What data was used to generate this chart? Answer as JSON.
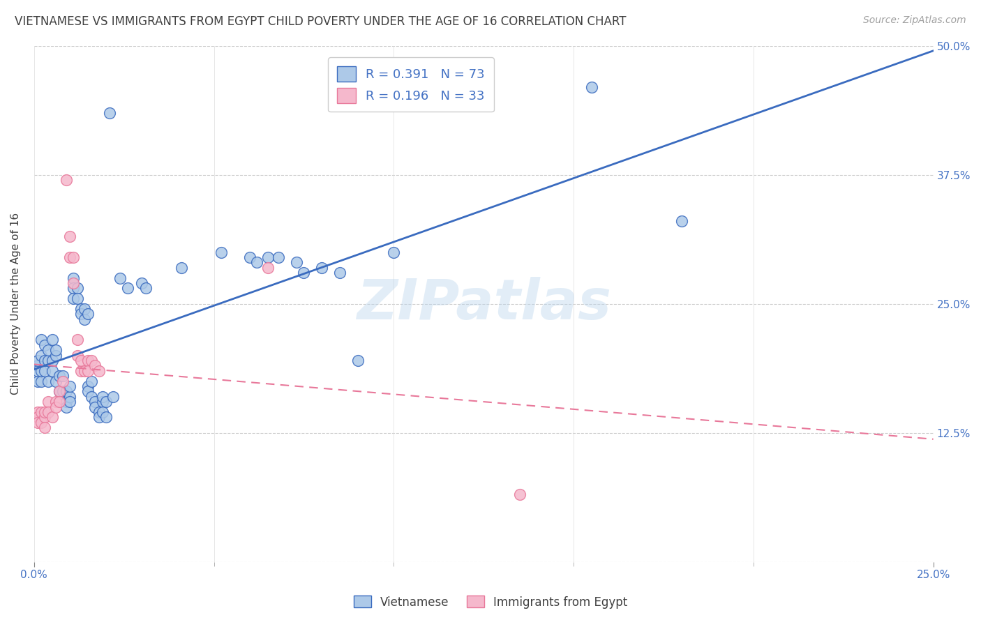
{
  "title": "VIETNAMESE VS IMMIGRANTS FROM EGYPT CHILD POVERTY UNDER THE AGE OF 16 CORRELATION CHART",
  "source": "Source: ZipAtlas.com",
  "ylabel_label": "Child Poverty Under the Age of 16",
  "legend_labels": [
    "Vietnamese",
    "Immigrants from Egypt"
  ],
  "r_values": [
    0.391,
    0.196
  ],
  "n_values": [
    73,
    33
  ],
  "scatter_color_blue": "#adc9e8",
  "scatter_color_pink": "#f5b8cc",
  "line_color_blue": "#3a6bbf",
  "line_color_pink": "#e8789a",
  "background_color": "#ffffff",
  "grid_color": "#cccccc",
  "watermark": "ZIPatlas",
  "title_color": "#404040",
  "source_color": "#a0a0a0",
  "blue_points": [
    [
      0.001,
      0.19
    ],
    [
      0.001,
      0.185
    ],
    [
      0.001,
      0.175
    ],
    [
      0.001,
      0.195
    ],
    [
      0.002,
      0.215
    ],
    [
      0.002,
      0.2
    ],
    [
      0.002,
      0.175
    ],
    [
      0.002,
      0.185
    ],
    [
      0.003,
      0.21
    ],
    [
      0.003,
      0.185
    ],
    [
      0.003,
      0.195
    ],
    [
      0.004,
      0.175
    ],
    [
      0.004,
      0.195
    ],
    [
      0.004,
      0.205
    ],
    [
      0.005,
      0.185
    ],
    [
      0.005,
      0.215
    ],
    [
      0.005,
      0.195
    ],
    [
      0.006,
      0.2
    ],
    [
      0.006,
      0.205
    ],
    [
      0.006,
      0.175
    ],
    [
      0.007,
      0.18
    ],
    [
      0.007,
      0.165
    ],
    [
      0.008,
      0.18
    ],
    [
      0.008,
      0.165
    ],
    [
      0.009,
      0.155
    ],
    [
      0.009,
      0.165
    ],
    [
      0.009,
      0.15
    ],
    [
      0.01,
      0.16
    ],
    [
      0.01,
      0.155
    ],
    [
      0.01,
      0.17
    ],
    [
      0.011,
      0.275
    ],
    [
      0.011,
      0.265
    ],
    [
      0.011,
      0.255
    ],
    [
      0.012,
      0.265
    ],
    [
      0.012,
      0.255
    ],
    [
      0.013,
      0.245
    ],
    [
      0.013,
      0.24
    ],
    [
      0.014,
      0.235
    ],
    [
      0.014,
      0.245
    ],
    [
      0.015,
      0.24
    ],
    [
      0.015,
      0.17
    ],
    [
      0.015,
      0.165
    ],
    [
      0.016,
      0.175
    ],
    [
      0.016,
      0.16
    ],
    [
      0.017,
      0.155
    ],
    [
      0.017,
      0.15
    ],
    [
      0.018,
      0.145
    ],
    [
      0.018,
      0.14
    ],
    [
      0.019,
      0.155
    ],
    [
      0.019,
      0.145
    ],
    [
      0.019,
      0.16
    ],
    [
      0.02,
      0.155
    ],
    [
      0.02,
      0.14
    ],
    [
      0.021,
      0.435
    ],
    [
      0.022,
      0.16
    ],
    [
      0.024,
      0.275
    ],
    [
      0.026,
      0.265
    ],
    [
      0.03,
      0.27
    ],
    [
      0.031,
      0.265
    ],
    [
      0.041,
      0.285
    ],
    [
      0.052,
      0.3
    ],
    [
      0.06,
      0.295
    ],
    [
      0.062,
      0.29
    ],
    [
      0.065,
      0.295
    ],
    [
      0.068,
      0.295
    ],
    [
      0.073,
      0.29
    ],
    [
      0.075,
      0.28
    ],
    [
      0.08,
      0.285
    ],
    [
      0.085,
      0.28
    ],
    [
      0.09,
      0.195
    ],
    [
      0.1,
      0.3
    ],
    [
      0.155,
      0.46
    ],
    [
      0.18,
      0.33
    ]
  ],
  "pink_points": [
    [
      0.001,
      0.145
    ],
    [
      0.001,
      0.14
    ],
    [
      0.001,
      0.135
    ],
    [
      0.002,
      0.145
    ],
    [
      0.002,
      0.135
    ],
    [
      0.003,
      0.14
    ],
    [
      0.003,
      0.13
    ],
    [
      0.003,
      0.145
    ],
    [
      0.004,
      0.155
    ],
    [
      0.004,
      0.145
    ],
    [
      0.005,
      0.14
    ],
    [
      0.006,
      0.155
    ],
    [
      0.006,
      0.15
    ],
    [
      0.007,
      0.165
    ],
    [
      0.007,
      0.155
    ],
    [
      0.008,
      0.175
    ],
    [
      0.009,
      0.37
    ],
    [
      0.01,
      0.315
    ],
    [
      0.01,
      0.295
    ],
    [
      0.011,
      0.295
    ],
    [
      0.011,
      0.27
    ],
    [
      0.012,
      0.2
    ],
    [
      0.012,
      0.215
    ],
    [
      0.013,
      0.185
    ],
    [
      0.013,
      0.195
    ],
    [
      0.014,
      0.185
    ],
    [
      0.015,
      0.195
    ],
    [
      0.015,
      0.185
    ],
    [
      0.016,
      0.195
    ],
    [
      0.017,
      0.19
    ],
    [
      0.018,
      0.185
    ],
    [
      0.065,
      0.285
    ],
    [
      0.135,
      0.065
    ]
  ],
  "xlim": [
    0,
    0.25
  ],
  "ylim": [
    0,
    0.5
  ],
  "figsize": [
    14.06,
    8.92
  ],
  "dpi": 100
}
